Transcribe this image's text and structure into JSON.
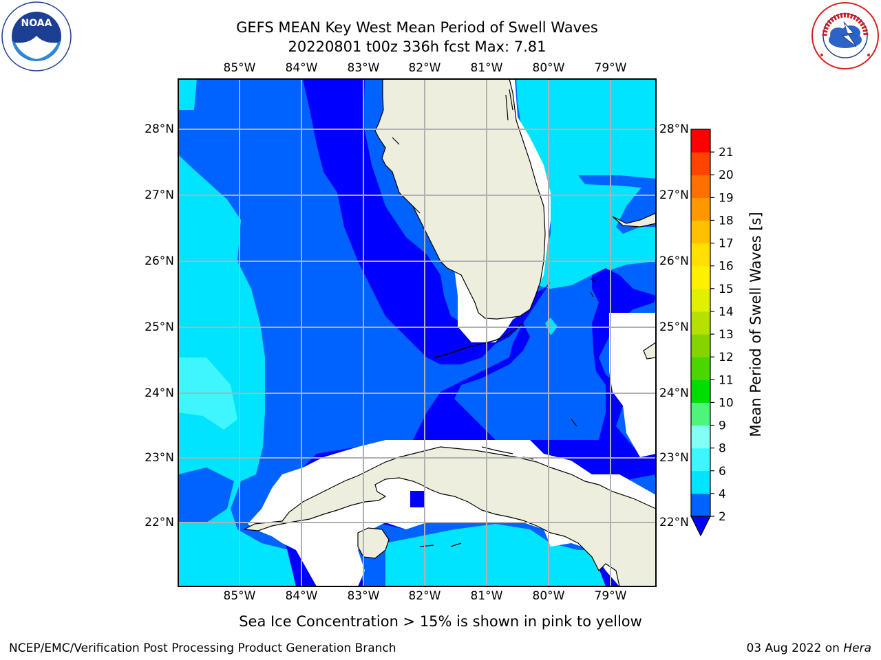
{
  "header": {
    "title_line1": "GEFS MEAN Key West Mean Period of Swell Waves",
    "title_line2": "20220801 t00z 336h fcst    Max: 7.81"
  },
  "logos": {
    "left": "noaa-logo",
    "left_text": "NOAA",
    "left_ring_text": "NATIONAL OCEANIC AND ATMOSPHERIC ADMINISTRATION · U.S. DEPARTMENT OF COMMERCE",
    "right": "nws-logo",
    "right_ring_text": "NATIONAL WEATHER SERVICE"
  },
  "map": {
    "lon_labels": [
      "85°W",
      "84°W",
      "83°W",
      "82°W",
      "81°W",
      "80°W",
      "79°W"
    ],
    "lat_labels": [
      "28°N",
      "27°N",
      "26°N",
      "25°N",
      "24°N",
      "23°N",
      "22°N"
    ],
    "land_color": "#eeeede",
    "no_data_color": "#ffffff",
    "grid_color": "#b0b0b0"
  },
  "colorbar": {
    "label": "Mean Period of Swell Waves [s]",
    "ticks": [
      "2",
      "4",
      "6",
      "8",
      "9",
      "10",
      "11",
      "12",
      "13",
      "14",
      "15",
      "16",
      "17",
      "18",
      "19",
      "20",
      "21"
    ],
    "colors": [
      "#0062ff",
      "#00e4ff",
      "#3ff6ff",
      "#84fff6",
      "#4df57a",
      "#00dd00",
      "#4ad600",
      "#85d400",
      "#b6e000",
      "#e1f000",
      "#fff000",
      "#ffe000",
      "#ffc000",
      "#ff9800",
      "#ff7000",
      "#ff4400",
      "#ff0000"
    ],
    "under_color": "#0000ff",
    "extend": "min"
  },
  "notes": {
    "ice": "Sea Ice Concentration > 15% is shown in pink to yellow"
  },
  "footer": {
    "left": "NCEP/EMC/Verification Post Processing Product Generation Branch",
    "right_date": "03 Aug 2022 on ",
    "right_machine": "Hera"
  }
}
